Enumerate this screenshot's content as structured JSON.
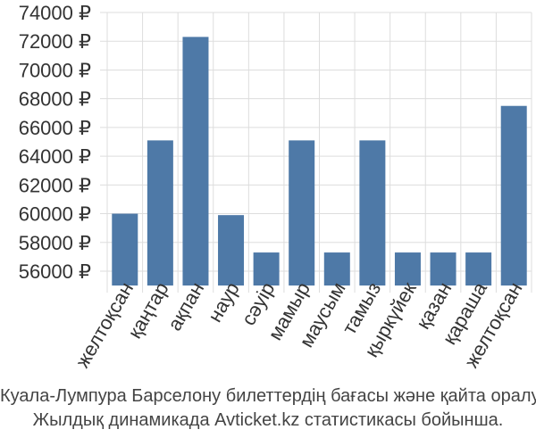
{
  "chart_data": {
    "type": "bar",
    "categories": [
      "желтоқсан",
      "қаңтар",
      "ақпан",
      "наур",
      "сәуір",
      "мамыр",
      "маусым",
      "тамыз",
      "қыркүйек",
      "қазан",
      "қараша",
      "желтоқсан"
    ],
    "values": [
      60000,
      65100,
      72300,
      59900,
      57300,
      65100,
      57300,
      65100,
      57300,
      57300,
      57300,
      67500
    ],
    "ylim": [
      55000,
      74000
    ],
    "yticks": [
      56000,
      58000,
      60000,
      62000,
      64000,
      66000,
      68000,
      70000,
      72000,
      74000
    ],
    "ytick_labels": [
      "56000 ₽",
      "58000 ₽",
      "60000 ₽",
      "62000 ₽",
      "64000 ₽",
      "66000 ₽",
      "68000 ₽",
      "70000 ₽",
      "72000 ₽",
      "74000 ₽"
    ],
    "grid": true,
    "bar_color": "#4e79a7",
    "grid_color": "#dddddd"
  },
  "caption": {
    "line1": "Куала-Лумпура Барселону билеттердің бағасы және қайта оралу",
    "line2": "Жылдық динамикада Avticket.kz статистикасы бойынша."
  }
}
